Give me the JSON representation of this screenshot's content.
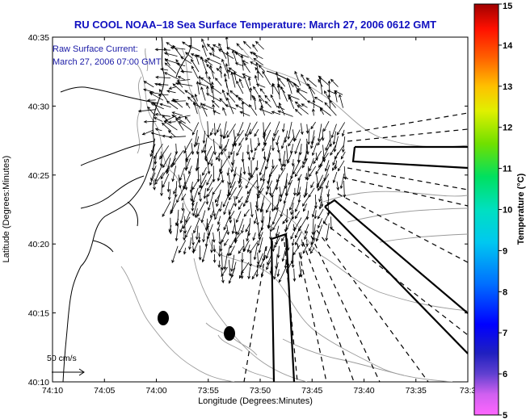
{
  "title": "RU COOL   NOAA–18  Sea Surface Temperature:  March 27, 2006 0612 GMT",
  "annotation": {
    "line1": "Raw Surface Current:",
    "line2": "March 27, 2006 07:00 GMT"
  },
  "x_axis": {
    "label": "Longitude (Degrees:Minutes)",
    "ticks": [
      "74:10",
      "74:05",
      "74:00",
      "73:55",
      "73:50",
      "73:45",
      "73:40",
      "73:35",
      "73:3"
    ]
  },
  "y_axis": {
    "label": "Latitude (Degrees:Minutes)",
    "ticks": [
      "40:35",
      "40:30",
      "40:25",
      "40:20",
      "40:15",
      "40:10"
    ]
  },
  "colorbar": {
    "label": "Temperature (°C)",
    "ticks": [
      "15",
      "14",
      "13",
      "12",
      "11",
      "10",
      "9",
      "8",
      "7",
      "6",
      "5"
    ],
    "range": [
      5,
      15
    ],
    "colors": [
      "#ff66ff",
      "#c050e0",
      "#3030c0",
      "#0000ff",
      "#0090ff",
      "#00e0e0",
      "#00e080",
      "#60e000",
      "#e0f000",
      "#ffa000",
      "#ff2000",
      "#b00000"
    ]
  },
  "scale_vector": {
    "label": "50 cm/s"
  },
  "markers": [
    {
      "name": "buoy-marker-west"
    },
    {
      "name": "buoy-marker-east"
    }
  ]
}
